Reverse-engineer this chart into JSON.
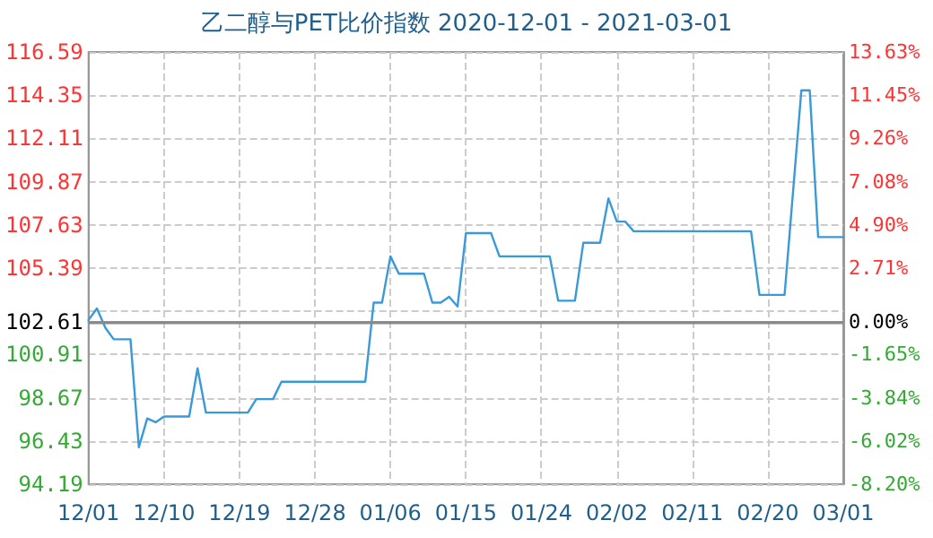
{
  "chart_data": {
    "type": "line",
    "title": "乙二醇与PET比价指数 2020-12-01 - 2021-03-01",
    "x": [
      "2020-12-01",
      "2020-12-02",
      "2020-12-03",
      "2020-12-04",
      "2020-12-06",
      "2020-12-07",
      "2020-12-08",
      "2020-12-09",
      "2020-12-10",
      "2020-12-13",
      "2020-12-14",
      "2020-12-15",
      "2020-12-20",
      "2020-12-21",
      "2020-12-23",
      "2020-12-24",
      "2021-01-03",
      "2021-01-04",
      "2021-01-05",
      "2021-01-06",
      "2021-01-07",
      "2021-01-10",
      "2021-01-11",
      "2021-01-12",
      "2021-01-13",
      "2021-01-14",
      "2021-01-15",
      "2021-01-18",
      "2021-01-19",
      "2021-01-25",
      "2021-01-26",
      "2021-01-28",
      "2021-01-29",
      "2021-01-31",
      "2021-02-01",
      "2021-02-02",
      "2021-02-03",
      "2021-02-04",
      "2021-02-18",
      "2021-02-19",
      "2021-02-22",
      "2021-02-24",
      "2021-02-25",
      "2021-02-26",
      "2021-03-01"
    ],
    "series": [
      {
        "color": "#3a9ad9",
        "values": [
          102.7,
          103.3,
          102.3,
          101.7,
          101.7,
          96.1,
          97.6,
          97.4,
          97.7,
          97.7,
          100.2,
          97.9,
          97.9,
          98.6,
          98.6,
          99.5,
          99.5,
          103.6,
          103.6,
          106.0,
          105.1,
          105.1,
          103.6,
          103.6,
          103.9,
          103.4,
          107.2,
          107.2,
          106.0,
          106.0,
          103.7,
          103.7,
          106.7,
          106.7,
          109.0,
          107.8,
          107.8,
          107.3,
          107.3,
          104.0,
          104.0,
          114.6,
          114.6,
          107.0,
          107.0
        ]
      }
    ],
    "xlim": [
      "2020-12-01",
      "2021-03-01"
    ],
    "xticks": [
      {
        "value": "2020-12-01",
        "label": "12/01"
      },
      {
        "value": "2020-12-10",
        "label": "12/10"
      },
      {
        "value": "2020-12-19",
        "label": "12/19"
      },
      {
        "value": "2020-12-28",
        "label": "12/28"
      },
      {
        "value": "2021-01-06",
        "label": "01/06"
      },
      {
        "value": "2021-01-15",
        "label": "01/15"
      },
      {
        "value": "2021-01-24",
        "label": "01/24"
      },
      {
        "value": "2021-02-02",
        "label": "02/02"
      },
      {
        "value": "2021-02-11",
        "label": "02/11"
      },
      {
        "value": "2021-02-20",
        "label": "02/20"
      },
      {
        "value": "2021-03-01",
        "label": "03/01"
      }
    ],
    "ylim": [
      94.19,
      116.59
    ],
    "yticks": [
      94.19,
      96.43,
      98.67,
      100.91,
      {
        "value": 103.15,
        "label": null
      },
      105.39,
      107.63,
      109.87,
      112.11,
      114.35,
      116.59
    ],
    "y2lim": [
      -8.2,
      13.63
    ],
    "y2ticks": [
      {
        "value": -8.2,
        "label": "-8.20%"
      },
      {
        "value": -6.02,
        "label": "-6.02%"
      },
      {
        "value": -3.84,
        "label": "-3.84%"
      },
      {
        "value": -1.65,
        "label": "-1.65%"
      },
      {
        "value": 0,
        "label": "0.00%"
      },
      {
        "value": 2.71,
        "label": "2.71%"
      },
      {
        "value": 4.9,
        "label": "4.90%"
      },
      {
        "value": 7.08,
        "label": "7.08%"
      },
      {
        "value": 9.26,
        "label": "9.26%"
      },
      {
        "value": 11.45,
        "label": "11.45%"
      },
      {
        "value": 13.63,
        "label": "13.63%"
      }
    ],
    "ref_lines": [
      {
        "axis": "y",
        "value": 102.61,
        "label": "102.61",
        "color": "#888888"
      }
    ],
    "grid": true,
    "marker": "none",
    "line_style": "solid"
  }
}
